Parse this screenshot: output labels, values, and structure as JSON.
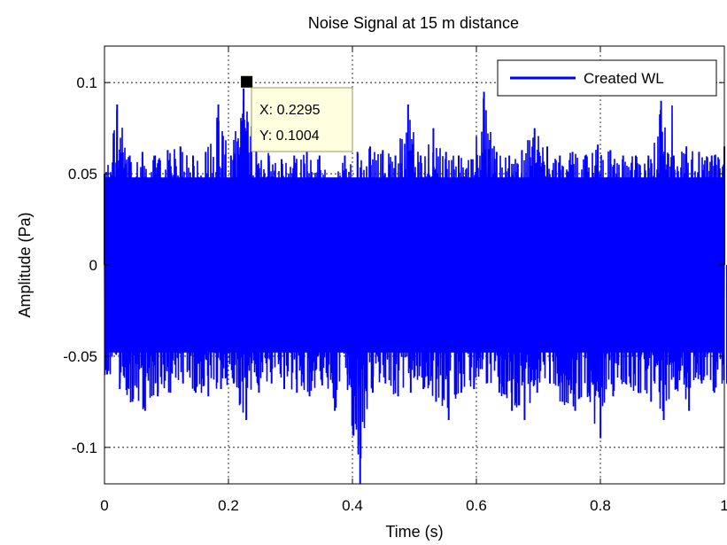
{
  "chart_data": {
    "type": "line",
    "title": "Noise Signal at 15 m distance",
    "xlabel": "Time (s)",
    "ylabel": "Amplitude (Pa)",
    "xlim": [
      0,
      1
    ],
    "ylim": [
      -0.12,
      0.12
    ],
    "x_ticks": [
      0,
      0.2,
      0.4,
      0.6,
      0.8,
      1
    ],
    "x_tick_labels": [
      "0",
      "0.2",
      "0.4",
      "0.6",
      "0.8",
      "1"
    ],
    "y_ticks": [
      0.1,
      0.05,
      0,
      -0.05,
      -0.1
    ],
    "y_tick_labels": [
      "0.1",
      "0.05",
      "0",
      "-0.05",
      "-0.1"
    ],
    "grid": true,
    "grid_style": "dotted",
    "legend_position": "top-right",
    "series": [
      {
        "name": "Created WL",
        "color": "#0000ff",
        "envelope_upper": [
          0.05,
          0.088,
          0.06,
          0.062,
          0.06,
          0.063,
          0.065,
          0.06,
          0.062,
          0.088,
          0.06,
          0.1004,
          0.063,
          0.06,
          0.058,
          0.06,
          0.062,
          0.06,
          0.045,
          0.06,
          0.062,
          0.065,
          0.063,
          0.06,
          0.088,
          0.06,
          0.075,
          0.062,
          0.06,
          0.058,
          0.095,
          0.062,
          0.06,
          0.063,
          0.075,
          0.065,
          0.06,
          0.062,
          0.06,
          0.066,
          0.063,
          0.06,
          0.06,
          0.06,
          0.09,
          0.06,
          0.065,
          0.062,
          0.06,
          0.065
        ],
        "envelope_lower": [
          -0.06,
          -0.068,
          -0.075,
          -0.08,
          -0.072,
          -0.07,
          -0.065,
          -0.07,
          -0.072,
          -0.068,
          -0.065,
          -0.085,
          -0.07,
          -0.065,
          -0.068,
          -0.07,
          -0.072,
          -0.066,
          -0.08,
          -0.06,
          -0.12,
          -0.07,
          -0.065,
          -0.072,
          -0.07,
          -0.068,
          -0.075,
          -0.085,
          -0.07,
          -0.068,
          -0.065,
          -0.07,
          -0.08,
          -0.085,
          -0.07,
          -0.065,
          -0.075,
          -0.08,
          -0.07,
          -0.095,
          -0.072,
          -0.065,
          -0.07,
          -0.075,
          -0.085,
          -0.068,
          -0.08,
          -0.065,
          -0.07,
          -0.065
        ]
      }
    ],
    "data_tip": {
      "x": 0.2295,
      "y": 0.1004,
      "x_label": "X: 0.2295",
      "y_label": "Y: 0.1004"
    }
  }
}
